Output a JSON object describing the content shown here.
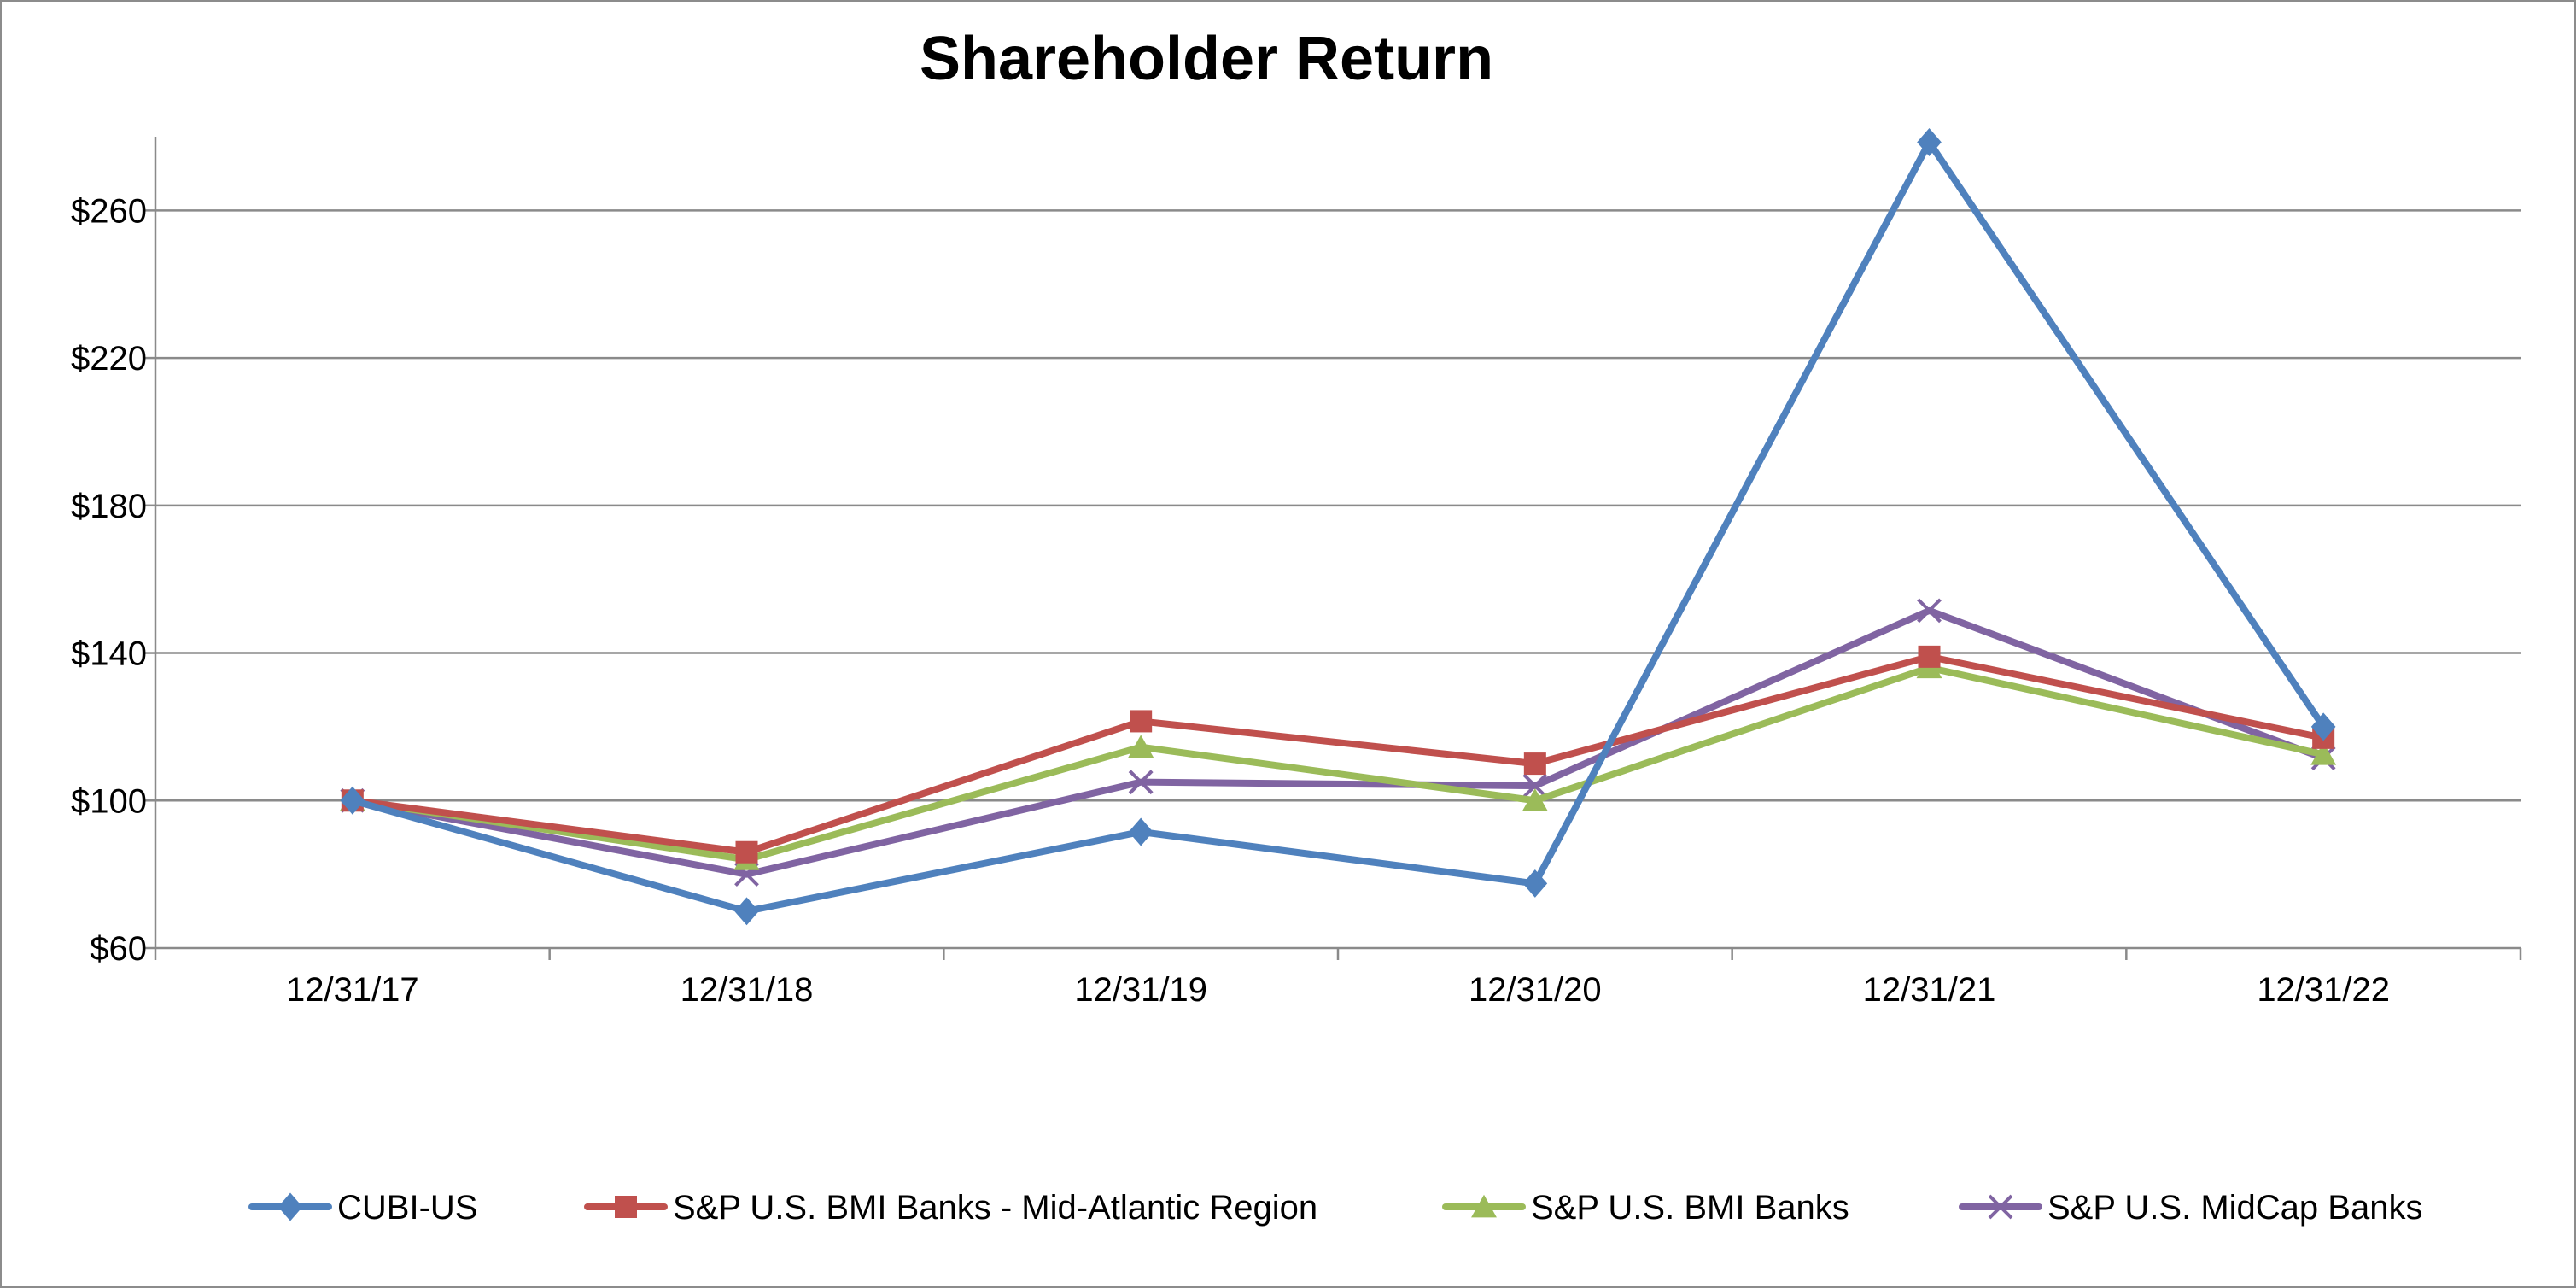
{
  "chart_data": {
    "type": "line",
    "title": "Shareholder Return",
    "xlabel": "",
    "ylabel": "",
    "categories": [
      "12/31/17",
      "12/31/18",
      "12/31/19",
      "12/31/20",
      "12/31/21",
      "12/31/22"
    ],
    "ylim": [
      60,
      280
    ],
    "yticks": [
      60,
      100,
      140,
      180,
      220,
      260
    ],
    "ytick_labels": [
      "$60",
      "$100",
      "$140",
      "$180",
      "$220",
      "$260"
    ],
    "grid": true,
    "legend_position": "bottom",
    "series": [
      {
        "name": "CUBI-US",
        "color": "#4F81BD",
        "marker": "diamond",
        "values": [
          100,
          70,
          91.5,
          77.5,
          278.5,
          120
        ]
      },
      {
        "name": "S&P U.S. BMI Banks - Mid-Atlantic Region",
        "color": "#C0504D",
        "marker": "square",
        "values": [
          100,
          86,
          121.5,
          110,
          139,
          117
        ]
      },
      {
        "name": "S&P U.S. BMI Banks",
        "color": "#9BBB59",
        "marker": "triangle",
        "values": [
          100,
          84,
          114.5,
          100,
          136,
          112.5
        ]
      },
      {
        "name": "S&P U.S. MidCap Banks",
        "color": "#8064A2",
        "marker": "x",
        "values": [
          100,
          80,
          105,
          104,
          151.5,
          111.5
        ]
      }
    ]
  }
}
